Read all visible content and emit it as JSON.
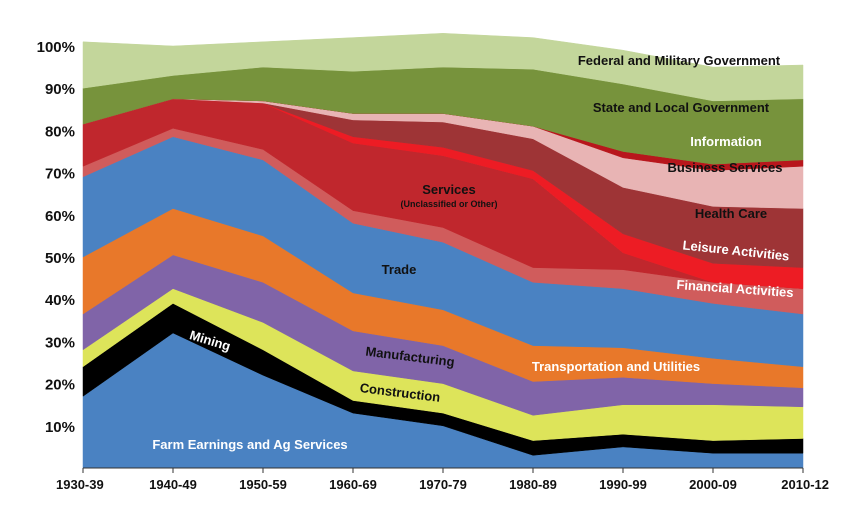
{
  "chart_data": {
    "type": "area",
    "stacked": true,
    "title": "",
    "xlabel": "",
    "ylabel": "",
    "ylim": [
      0,
      100
    ],
    "categories": [
      "1930-39",
      "1940-49",
      "1950-59",
      "1960-69",
      "1970-79",
      "1980-89",
      "1990-99",
      "2000-09",
      "2010-12"
    ],
    "y_ticks": [
      "10%",
      "20%",
      "30%",
      "40%",
      "50%",
      "60%",
      "70%",
      "80%",
      "90%",
      "100%"
    ],
    "series": [
      {
        "name": "Farm Earnings and Ag Services",
        "color": "#4a82c2",
        "values": [
          17,
          32,
          22,
          13,
          10,
          3,
          5,
          3.5,
          3.5
        ]
      },
      {
        "name": "Mining",
        "color": "#000000",
        "values": [
          7,
          7,
          6,
          3,
          3,
          3.5,
          3,
          3,
          3.5
        ]
      },
      {
        "name": "Construction",
        "color": "#dde45a",
        "values": [
          4,
          3.5,
          6.5,
          7,
          7,
          6,
          7,
          8.5,
          7.5
        ]
      },
      {
        "name": "Manufacturing",
        "color": "#8064a8",
        "values": [
          8.5,
          8,
          9.5,
          9.5,
          9,
          8,
          6.5,
          5,
          4.5
        ]
      },
      {
        "name": "Transportation and Utilities",
        "color": "#e8782a",
        "values": [
          13.5,
          11,
          11,
          9,
          8.5,
          8.5,
          7,
          6,
          5
        ]
      },
      {
        "name": "Trade",
        "color": "#4a82c2",
        "values": [
          19,
          17,
          18,
          16.5,
          16,
          15,
          14,
          13,
          12.5
        ]
      },
      {
        "name": "Financial Activities",
        "color": "#d05c5c",
        "values": [
          2.5,
          2,
          2.5,
          3,
          3.5,
          3.5,
          4.5,
          5,
          6
        ]
      },
      {
        "name": "Services (Unclassified or Other)",
        "color": "#c0272d",
        "values": [
          10,
          7,
          11,
          16,
          17,
          21,
          4,
          0,
          0
        ]
      },
      {
        "name": "Leisure Activities",
        "color": "#ed1c24",
        "values": [
          0,
          0,
          0,
          1.5,
          2,
          2,
          4.5,
          4.5,
          5
        ]
      },
      {
        "name": "Health Care",
        "color": "#9e3436",
        "values": [
          0,
          0,
          0,
          4,
          6,
          7.5,
          11,
          13.5,
          14
        ]
      },
      {
        "name": "Business Services",
        "color": "#e8b4b4",
        "values": [
          0,
          0,
          0.5,
          1.5,
          2,
          3,
          7,
          8.5,
          10
        ]
      },
      {
        "name": "Information",
        "color": "#b8161c",
        "values": [
          0,
          0,
          0,
          0,
          0,
          0,
          1.5,
          1.5,
          1.5
        ]
      },
      {
        "name": "State and Local Government",
        "color": "#77933c",
        "values": [
          8.5,
          5.5,
          8,
          10,
          11,
          13.5,
          16,
          15,
          14.5
        ]
      },
      {
        "name": "Federal and Military Government",
        "color": "#c3d69b",
        "values": [
          11,
          7,
          6,
          8,
          8,
          7.5,
          8,
          8,
          8
        ]
      }
    ],
    "labels": {
      "farm": "Farm Earnings and Ag Services",
      "mining": "Mining",
      "construction": "Construction",
      "manufacturing": "Manufacturing",
      "transport": "Transportation and Utilities",
      "trade": "Trade",
      "financial": "Financial Activities",
      "services": "Services",
      "services_sub": "(Unclassified or Other)",
      "leisure": "Leisure Activities",
      "health": "Health Care",
      "business": "Business Services",
      "information": "Information",
      "state": "State and Local Government",
      "federal": "Federal and Military Government"
    }
  }
}
